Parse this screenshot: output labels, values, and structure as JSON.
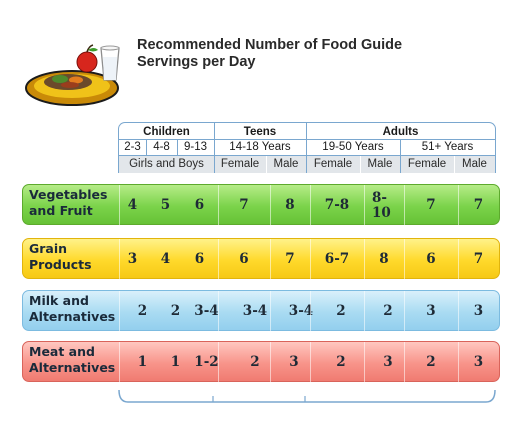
{
  "title": {
    "line1_a": "Recommended Number of ",
    "line1_b": "Food Guide",
    "line2_a": "Servings",
    "line2_b": " per Day"
  },
  "header": {
    "groups": [
      "Children",
      "Teens",
      "Adults"
    ],
    "ages": [
      "2-3",
      "4-8",
      "9-13",
      "14-18 Years",
      "19-50 Years",
      "51+ Years"
    ],
    "sexes": [
      "Girls and Boys",
      "Female",
      "Male",
      "Female",
      "Male",
      "Female",
      "Male"
    ]
  },
  "rows": [
    {
      "category_1": "Vegetables",
      "category_2": "and Fruit",
      "values": [
        "4",
        "5",
        "6",
        "7",
        "8",
        "7-8",
        "8-10",
        "7",
        "7"
      ]
    },
    {
      "category_1": "Grain",
      "category_2": "Products",
      "values": [
        "3",
        "4",
        "6",
        "6",
        "7",
        "6-7",
        "8",
        "6",
        "7"
      ]
    },
    {
      "category_1": "Milk and",
      "category_2": "Alternatives",
      "values": [
        "2",
        "2",
        "3-4",
        "3-4",
        "3-4",
        "2",
        "2",
        "3",
        "3"
      ]
    },
    {
      "category_1": "Meat and",
      "category_2": "Alternatives",
      "values": [
        "1",
        "1",
        "1-2",
        "2",
        "3",
        "2",
        "3",
        "2",
        "3"
      ]
    }
  ],
  "colors": {
    "vegetables": "#7bd34a",
    "grain": "#ffd92b",
    "milk": "#a9dbf2",
    "meat": "#f8948a",
    "header_border": "#7aa7cf"
  }
}
